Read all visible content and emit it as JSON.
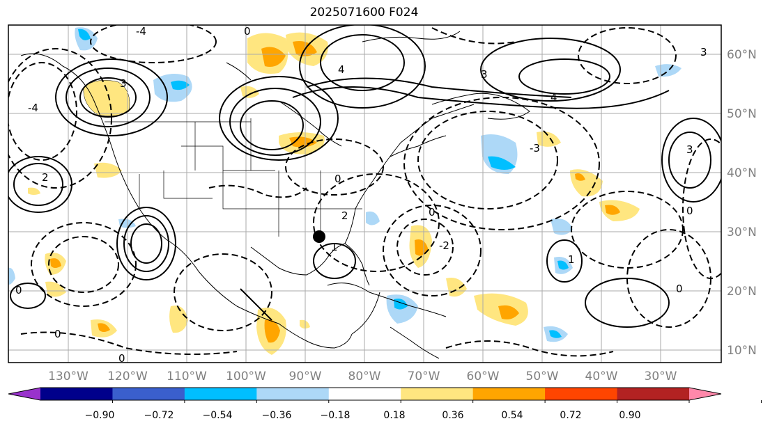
{
  "title": "2025071600 F024",
  "lon_labels": [
    "130°W",
    "120°W",
    "110°W",
    "100°W",
    "90°W",
    "80°W",
    "70°W",
    "60°W",
    "50°W",
    "40°W",
    "30°W"
  ],
  "lat_labels": [
    "60°N",
    "50°N",
    "40°N",
    "30°N",
    "20°N",
    "10°N"
  ],
  "colorbar": {
    "ticks": [
      "−0.90",
      "−0.72",
      "−0.54",
      "−0.36",
      "−0.18",
      "0.18",
      "0.36",
      "0.54",
      "0.72",
      "0.90"
    ],
    "colors": [
      "#9932cc",
      "#00008b",
      "#3a5fcd",
      "#00bfff",
      "#add8f7",
      "#ffffff",
      "#ffe680",
      "#ffa500",
      "#ff4500",
      "#b22222",
      "#ff88aa"
    ]
  },
  "contour_labels": [
    "0",
    "1",
    "2",
    "3",
    "4",
    "-1",
    "-2",
    "-3",
    "-4"
  ],
  "marker": "storm-center"
}
